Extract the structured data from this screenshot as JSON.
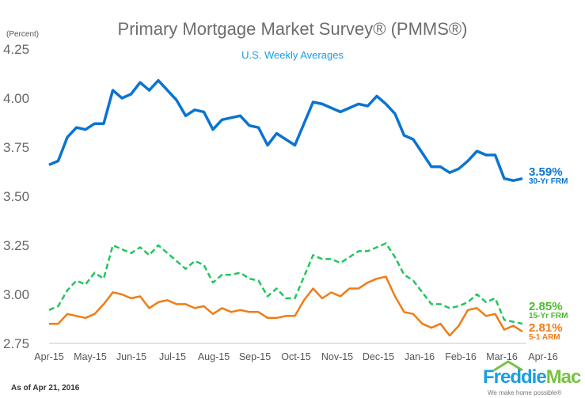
{
  "title": "Primary Mortgage Market Survey® (PMMS®)",
  "subtitle": "U.S. Weekly Averages",
  "y_unit": "(Percent)",
  "as_of": "As of Apr 21, 2016",
  "logo": {
    "name_part1": "Freddie",
    "name_part2": "Mac",
    "tagline": "We make home possible®"
  },
  "colors": {
    "frm30": "#0a74d0",
    "frm15": "#22c55e",
    "arm51": "#f07c16",
    "label15": "#4cbb2c"
  },
  "labels": {
    "frm30": {
      "value": "3.59%",
      "name": "30-Yr FRM"
    },
    "frm15": {
      "value": "2.85%",
      "name": "15-Yr FRM"
    },
    "arm51": {
      "value": "2.81%",
      "name": "5-1 ARM"
    }
  },
  "chart_data": {
    "type": "line",
    "title": "Primary Mortgage Market Survey® (PMMS®)",
    "subtitle": "U.S. Weekly Averages",
    "ylabel": "(Percent)",
    "ylim": [
      2.75,
      4.25
    ],
    "yticks": [
      "4.25",
      "4.00",
      "3.75",
      "3.50",
      "3.25",
      "3.00",
      "2.75"
    ],
    "ytick_values": [
      4.25,
      4.0,
      3.75,
      3.5,
      3.25,
      3.0,
      2.75
    ],
    "xticks": [
      "Apr-15",
      "May-15",
      "Jun-15",
      "Jul-15",
      "Aug-15",
      "Sep-15",
      "Oct-15",
      "Nov-15",
      "Dec-15",
      "Jan-16",
      "Feb-16",
      "Mar-16",
      "Apr-16"
    ],
    "x_frequency": "weekly",
    "series": [
      {
        "name": "30-Yr FRM",
        "style": "solid",
        "values": [
          3.66,
          3.68,
          3.8,
          3.85,
          3.84,
          3.87,
          3.87,
          4.04,
          4.0,
          4.02,
          4.08,
          4.04,
          4.09,
          4.04,
          3.99,
          3.91,
          3.94,
          3.93,
          3.84,
          3.89,
          3.9,
          3.91,
          3.86,
          3.85,
          3.76,
          3.82,
          3.79,
          3.76,
          3.87,
          3.98,
          3.97,
          3.95,
          3.93,
          3.95,
          3.97,
          3.96,
          4.01,
          3.97,
          3.92,
          3.81,
          3.79,
          3.72,
          3.65,
          3.65,
          3.62,
          3.64,
          3.68,
          3.73,
          3.71,
          3.71,
          3.59,
          3.58,
          3.59
        ]
      },
      {
        "name": "15-Yr FRM",
        "style": "dashed",
        "values": [
          2.92,
          2.94,
          3.02,
          3.07,
          3.05,
          3.11,
          3.08,
          3.25,
          3.23,
          3.21,
          3.24,
          3.2,
          3.25,
          3.21,
          3.17,
          3.13,
          3.17,
          3.15,
          3.06,
          3.1,
          3.1,
          3.11,
          3.08,
          3.07,
          2.99,
          3.03,
          2.98,
          2.98,
          3.09,
          3.2,
          3.18,
          3.18,
          3.16,
          3.19,
          3.22,
          3.22,
          3.24,
          3.26,
          3.19,
          3.1,
          3.07,
          3.01,
          2.95,
          2.95,
          2.93,
          2.94,
          2.96,
          3.0,
          2.96,
          2.98,
          2.87,
          2.86,
          2.85
        ]
      },
      {
        "name": "5-1 ARM",
        "style": "solid",
        "values": [
          2.85,
          2.85,
          2.9,
          2.89,
          2.88,
          2.9,
          2.95,
          3.01,
          3.0,
          2.98,
          2.99,
          2.93,
          2.96,
          2.97,
          2.95,
          2.95,
          2.93,
          2.94,
          2.9,
          2.93,
          2.91,
          2.92,
          2.91,
          2.91,
          2.88,
          2.88,
          2.89,
          2.89,
          2.97,
          3.03,
          2.98,
          3.01,
          2.99,
          3.03,
          3.03,
          3.06,
          3.08,
          3.09,
          2.99,
          2.91,
          2.9,
          2.85,
          2.83,
          2.85,
          2.79,
          2.84,
          2.92,
          2.93,
          2.89,
          2.9,
          2.82,
          2.84,
          2.81
        ]
      }
    ],
    "grid": false,
    "legend": "right end-labels"
  }
}
